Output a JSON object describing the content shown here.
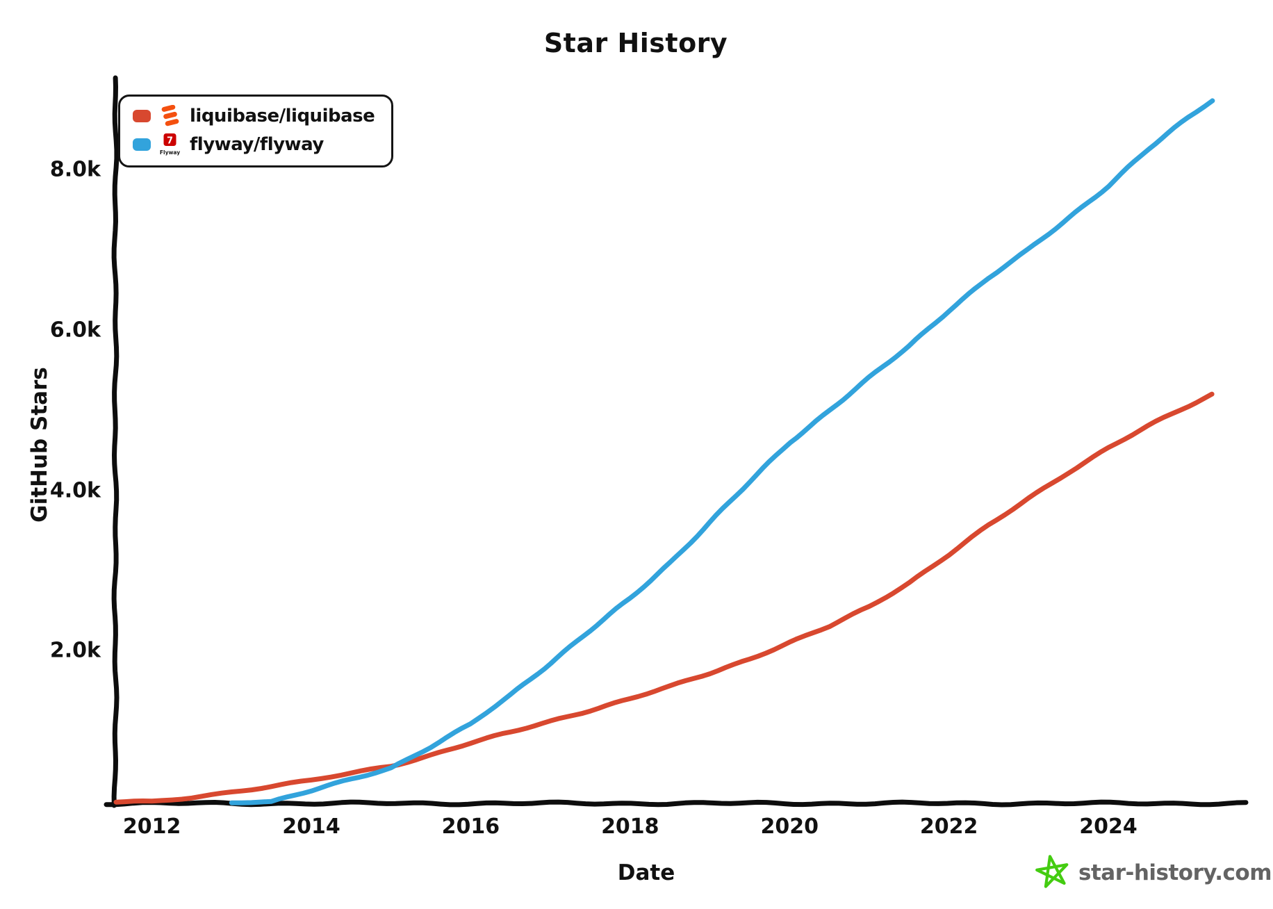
{
  "title": "Star History",
  "footer": {
    "site": "star-history.com",
    "text_color": "#636363",
    "star_color": "#44CC11"
  },
  "legend": {
    "items": [
      {
        "label": "liquibase/liquibase",
        "swatch_color": "#D8482F",
        "logo": "liquibase-logo",
        "logo_color": "#F4500F"
      },
      {
        "label": "flyway/flyway",
        "swatch_color": "#32A3DC",
        "logo": "flyway-logo",
        "logo_color": "#CC0201",
        "logo_glyph": "7",
        "logo_text": "Flyway"
      }
    ]
  },
  "chart_data": {
    "type": "line",
    "title": "Star History",
    "xlabel": "Date",
    "ylabel": "GitHub Stars",
    "grid": false,
    "legend_position": "top-left",
    "axis_color": "#0d0d0d",
    "xlim": [
      2011.55,
      2025.7
    ],
    "ylim": [
      0,
      9120
    ],
    "x_ticks": [
      {
        "label": "2012",
        "year": 2012
      },
      {
        "label": "2014",
        "year": 2014
      },
      {
        "label": "2016",
        "year": 2016
      },
      {
        "label": "2018",
        "year": 2018
      },
      {
        "label": "2020",
        "year": 2020
      },
      {
        "label": "2022",
        "year": 2022
      },
      {
        "label": "2024",
        "year": 2024
      }
    ],
    "y_ticks": [
      {
        "label": "2.0k",
        "value": 2000
      },
      {
        "label": "4.0k",
        "value": 4000
      },
      {
        "label": "6.0k",
        "value": 6000
      },
      {
        "label": "8.0k",
        "value": 8000
      }
    ],
    "series": [
      {
        "name": "liquibase/liquibase",
        "color": "#D8482F",
        "points": [
          [
            2011.55,
            0
          ],
          [
            2012,
            100
          ],
          [
            2012.5,
            170
          ],
          [
            2013,
            240
          ],
          [
            2013.5,
            310
          ],
          [
            2014,
            380
          ],
          [
            2014.5,
            470
          ],
          [
            2015,
            560
          ],
          [
            2015.5,
            700
          ],
          [
            2016,
            850
          ],
          [
            2016.5,
            980
          ],
          [
            2017,
            1120
          ],
          [
            2017.5,
            1260
          ],
          [
            2018,
            1400
          ],
          [
            2018.5,
            1550
          ],
          [
            2019,
            1720
          ],
          [
            2019.5,
            1900
          ],
          [
            2020,
            2100
          ],
          [
            2020.5,
            2300
          ],
          [
            2021,
            2550
          ],
          [
            2021.5,
            2850
          ],
          [
            2022,
            3200
          ],
          [
            2022.5,
            3560
          ],
          [
            2023,
            3900
          ],
          [
            2023.5,
            4230
          ],
          [
            2024,
            4530
          ],
          [
            2024.5,
            4800
          ],
          [
            2025,
            5050
          ],
          [
            2025.3,
            5200
          ]
        ]
      },
      {
        "name": "flyway/flyway",
        "color": "#32A3DC",
        "points": [
          [
            2013,
            0
          ],
          [
            2013.5,
            110
          ],
          [
            2014,
            250
          ],
          [
            2014.5,
            400
          ],
          [
            2015,
            540
          ],
          [
            2015.5,
            800
          ],
          [
            2016,
            1080
          ],
          [
            2016.5,
            1450
          ],
          [
            2017,
            1850
          ],
          [
            2017.5,
            2250
          ],
          [
            2018,
            2650
          ],
          [
            2018.5,
            3100
          ],
          [
            2019,
            3600
          ],
          [
            2019.5,
            4100
          ],
          [
            2020,
            4600
          ],
          [
            2020.5,
            5000
          ],
          [
            2021,
            5400
          ],
          [
            2021.5,
            5800
          ],
          [
            2022,
            6250
          ],
          [
            2022.5,
            6650
          ],
          [
            2023,
            7000
          ],
          [
            2023.5,
            7400
          ],
          [
            2024,
            7800
          ],
          [
            2024.5,
            8250
          ],
          [
            2025,
            8650
          ],
          [
            2025.3,
            8870
          ]
        ]
      }
    ]
  }
}
